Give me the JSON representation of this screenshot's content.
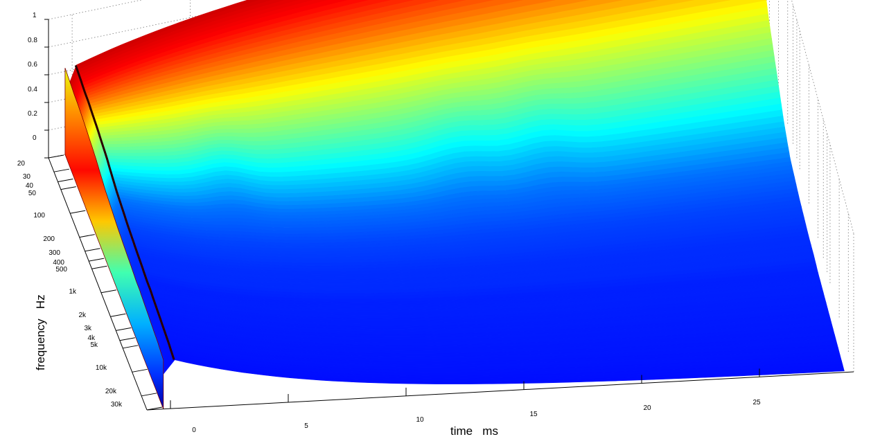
{
  "chart_data": {
    "type": "area",
    "title": "",
    "xlabel": "time   ms",
    "ylabel": "frequency   Hz",
    "zlabel": "",
    "x_ticks": [
      "0",
      "5",
      "10",
      "15",
      "20",
      "25"
    ],
    "y_ticks": [
      "20",
      "30",
      "40",
      "50",
      "100",
      "200",
      "300",
      "400",
      "500",
      "1k",
      "2k",
      "3k",
      "4k",
      "5k",
      "10k",
      "20k",
      "30k"
    ],
    "z_ticks": [
      "0",
      "0.2",
      "0.4",
      "0.6",
      "0.8",
      "1"
    ],
    "xlim": [
      -1,
      29
    ],
    "ylim": [
      20,
      30000
    ],
    "zlim": [
      0,
      1
    ],
    "y_scale": "log",
    "grid": true,
    "colormap": "jet",
    "colormap_stops": [
      "#00008f",
      "#0000ff",
      "#00ffff",
      "#ffff00",
      "#ff0000",
      "#800000"
    ],
    "decay_profile": {
      "frequencies_hz": [
        20,
        30,
        40,
        50,
        100,
        200,
        300,
        400,
        500,
        1000,
        2000,
        3000,
        4000,
        5000,
        10000,
        20000,
        30000
      ],
      "level_at_0ms": [
        0.62,
        0.61,
        0.6,
        0.6,
        0.58,
        0.55,
        0.52,
        0.5,
        0.49,
        0.46,
        0.44,
        0.43,
        0.42,
        0.42,
        0.4,
        0.38,
        0.36
      ],
      "level_at_28ms": [
        0.95,
        0.9,
        0.82,
        0.75,
        0.5,
        0.3,
        0.18,
        0.12,
        0.08,
        0.04,
        0.02,
        0.02,
        0.01,
        0.01,
        0.01,
        0.01,
        0.01
      ]
    }
  }
}
